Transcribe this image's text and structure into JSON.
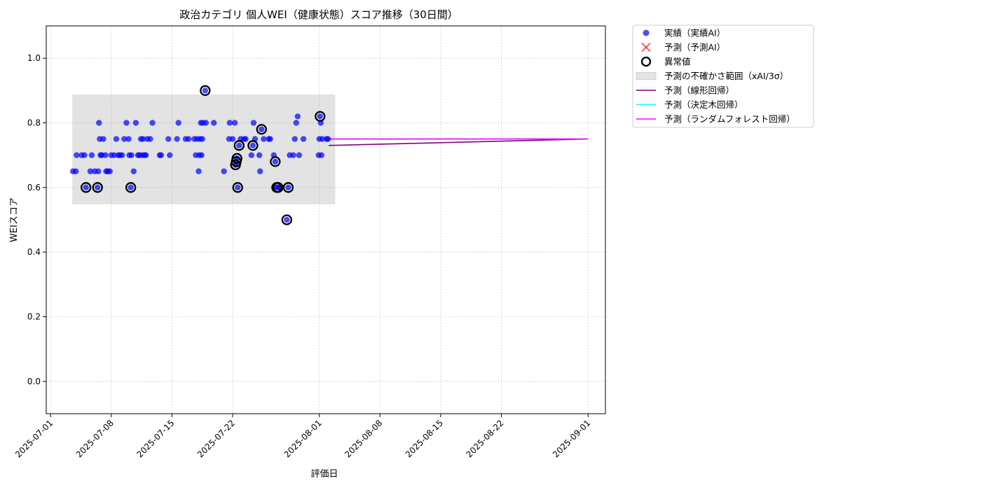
{
  "chart_data": {
    "type": "scatter",
    "title": "政治カテゴリ 個人WEI（健康状態）スコア推移（30日間）",
    "xlabel": "評価日",
    "ylabel": "WEIスコア",
    "xlim": [
      "2025-06-30T12:00",
      "2025-09-03T00:00"
    ],
    "ylim": [
      -0.1,
      1.1
    ],
    "grid": true,
    "legend_position": "outside-top-right",
    "x_ticks": [
      "2025-07-01",
      "2025-07-08",
      "2025-07-15",
      "2025-07-22",
      "2025-08-01",
      "2025-08-08",
      "2025-08-15",
      "2025-08-22",
      "2025-09-01"
    ],
    "y_ticks": [
      "0.0",
      "0.2",
      "0.4",
      "0.6",
      "0.8",
      "1.0"
    ],
    "uncertainty_band": {
      "label": "予測の不確かさ範囲（xAI/3σ）",
      "x": [
        "2025-07-03T12:00",
        "2025-08-02T20:00"
      ],
      "y": [
        0.548,
        0.888
      ],
      "color": "#b0b0b0"
    },
    "series": [
      {
        "name": "実績（実績AI）",
        "kind": "scatter",
        "color": "#0000ff",
        "points": [
          [
            "2025-07-03T14:00",
            0.65
          ],
          [
            "2025-07-03T22:00",
            0.65
          ],
          [
            "2025-07-04T00:00",
            0.7
          ],
          [
            "2025-07-04T14:00",
            0.7
          ],
          [
            "2025-07-04T22:00",
            0.7
          ],
          [
            "2025-07-05T02:00",
            0.6
          ],
          [
            "2025-07-05T14:00",
            0.65
          ],
          [
            "2025-07-05T18:00",
            0.7
          ],
          [
            "2025-07-06T02:00",
            0.65
          ],
          [
            "2025-07-06T10:00",
            0.6
          ],
          [
            "2025-07-06T12:00",
            0.65
          ],
          [
            "2025-07-06T14:00",
            0.8
          ],
          [
            "2025-07-06T16:00",
            0.75
          ],
          [
            "2025-07-06T18:00",
            0.7
          ],
          [
            "2025-07-06T22:00",
            0.7
          ],
          [
            "2025-07-07T02:00",
            0.75
          ],
          [
            "2025-07-07T08:00",
            0.7
          ],
          [
            "2025-07-07T10:00",
            0.65
          ],
          [
            "2025-07-07T14:00",
            0.65
          ],
          [
            "2025-07-07T20:00",
            0.65
          ],
          [
            "2025-07-08T00:00",
            0.7
          ],
          [
            "2025-07-08T08:00",
            0.7
          ],
          [
            "2025-07-08T14:00",
            0.75
          ],
          [
            "2025-07-08T20:00",
            0.7
          ],
          [
            "2025-07-09T00:00",
            0.7
          ],
          [
            "2025-07-09T06:00",
            0.7
          ],
          [
            "2025-07-09T12:00",
            0.75
          ],
          [
            "2025-07-09T18:00",
            0.8
          ],
          [
            "2025-07-10T00:00",
            0.75
          ],
          [
            "2025-07-10T02:00",
            0.7
          ],
          [
            "2025-07-10T06:00",
            0.6
          ],
          [
            "2025-07-10T08:00",
            0.7
          ],
          [
            "2025-07-10T14:00",
            0.65
          ],
          [
            "2025-07-10T20:00",
            0.8
          ],
          [
            "2025-07-11T02:00",
            0.7
          ],
          [
            "2025-07-11T06:00",
            0.7
          ],
          [
            "2025-07-11T10:00",
            0.75
          ],
          [
            "2025-07-11T14:00",
            0.7
          ],
          [
            "2025-07-11T16:00",
            0.75
          ],
          [
            "2025-07-11T20:00",
            0.7
          ],
          [
            "2025-07-12T00:00",
            0.7
          ],
          [
            "2025-07-12T04:00",
            0.75
          ],
          [
            "2025-07-12T12:00",
            0.75
          ],
          [
            "2025-07-12T18:00",
            0.8
          ],
          [
            "2025-07-13T14:00",
            0.7
          ],
          [
            "2025-07-13T18:00",
            0.7
          ],
          [
            "2025-07-14T14:00",
            0.75
          ],
          [
            "2025-07-14T18:00",
            0.7
          ],
          [
            "2025-07-15T14:00",
            0.75
          ],
          [
            "2025-07-15T18:00",
            0.8
          ],
          [
            "2025-07-16T14:00",
            0.75
          ],
          [
            "2025-07-16T22:00",
            0.75
          ],
          [
            "2025-07-17T14:00",
            0.75
          ],
          [
            "2025-07-17T18:00",
            0.7
          ],
          [
            "2025-07-17T22:00",
            0.75
          ],
          [
            "2025-07-18T02:00",
            0.65
          ],
          [
            "2025-07-18T04:00",
            0.7
          ],
          [
            "2025-07-18T06:00",
            0.75
          ],
          [
            "2025-07-18T08:00",
            0.8
          ],
          [
            "2025-07-18T10:00",
            0.7
          ],
          [
            "2025-07-18T12:00",
            0.75
          ],
          [
            "2025-07-18T14:00",
            0.8
          ],
          [
            "2025-07-18T20:00",
            0.9
          ],
          [
            "2025-07-18T22:00",
            0.8
          ],
          [
            "2025-07-19T20:00",
            0.8
          ],
          [
            "2025-07-21T00:00",
            0.65
          ],
          [
            "2025-07-21T14:00",
            0.75
          ],
          [
            "2025-07-21T16:00",
            0.8
          ],
          [
            "2025-07-22T00:00",
            0.75
          ],
          [
            "2025-07-22T06:00",
            0.8
          ],
          [
            "2025-07-22T08:00",
            0.67
          ],
          [
            "2025-07-22T10:00",
            0.68
          ],
          [
            "2025-07-22T12:00",
            0.69
          ],
          [
            "2025-07-22T14:00",
            0.6
          ],
          [
            "2025-07-22T18:00",
            0.73
          ],
          [
            "2025-07-22T22:00",
            0.75
          ],
          [
            "2025-07-23T08:00",
            0.75
          ],
          [
            "2025-07-23T12:00",
            0.75
          ],
          [
            "2025-07-24T04:00",
            0.7
          ],
          [
            "2025-07-24T08:00",
            0.73
          ],
          [
            "2025-07-24T10:00",
            0.8
          ],
          [
            "2025-07-24T14:00",
            0.75
          ],
          [
            "2025-07-25T02:00",
            0.7
          ],
          [
            "2025-07-25T04:00",
            0.65
          ],
          [
            "2025-07-25T08:00",
            0.78
          ],
          [
            "2025-07-25T14:00",
            0.75
          ],
          [
            "2025-07-26T04:00",
            0.75
          ],
          [
            "2025-07-26T08:00",
            0.75
          ],
          [
            "2025-07-26T18:00",
            0.7
          ],
          [
            "2025-07-26T22:00",
            0.68
          ],
          [
            "2025-07-27T02:00",
            0.6
          ],
          [
            "2025-07-27T06:00",
            0.6
          ],
          [
            "2025-07-27T10:00",
            0.6
          ],
          [
            "2025-07-28T06:00",
            0.5
          ],
          [
            "2025-07-28T10:00",
            0.6
          ],
          [
            "2025-07-28T14:00",
            0.7
          ],
          [
            "2025-07-29T00:00",
            0.7
          ],
          [
            "2025-07-29T04:00",
            0.75
          ],
          [
            "2025-07-29T08:00",
            0.8
          ],
          [
            "2025-07-29T12:00",
            0.82
          ],
          [
            "2025-07-29T16:00",
            0.7
          ],
          [
            "2025-07-30T04:00",
            0.75
          ],
          [
            "2025-07-31T22:00",
            0.7
          ],
          [
            "2025-08-01T00:00",
            0.75
          ],
          [
            "2025-08-01T02:00",
            0.82
          ],
          [
            "2025-08-01T04:00",
            0.8
          ],
          [
            "2025-08-01T06:00",
            0.7
          ],
          [
            "2025-08-01T08:00",
            0.75
          ],
          [
            "2025-08-01T20:00",
            0.75
          ],
          [
            "2025-08-02T00:00",
            0.75
          ]
        ]
      },
      {
        "name": "予測（予測AI）",
        "kind": "x-marker",
        "color": "#ff0000",
        "points": []
      },
      {
        "name": "異常値",
        "kind": "ring",
        "color": "#000000",
        "points": [
          [
            "2025-07-05T02:00",
            0.6
          ],
          [
            "2025-07-06T10:00",
            0.6
          ],
          [
            "2025-07-10T06:00",
            0.6
          ],
          [
            "2025-07-18T20:00",
            0.9
          ],
          [
            "2025-07-22T08:00",
            0.67
          ],
          [
            "2025-07-22T10:00",
            0.68
          ],
          [
            "2025-07-22T12:00",
            0.69
          ],
          [
            "2025-07-22T14:00",
            0.6
          ],
          [
            "2025-07-22T18:00",
            0.73
          ],
          [
            "2025-07-24T08:00",
            0.73
          ],
          [
            "2025-07-25T08:00",
            0.78
          ],
          [
            "2025-07-26T22:00",
            0.68
          ],
          [
            "2025-07-27T02:00",
            0.6
          ],
          [
            "2025-07-27T06:00",
            0.6
          ],
          [
            "2025-07-28T06:00",
            0.5
          ],
          [
            "2025-07-28T10:00",
            0.6
          ],
          [
            "2025-08-01T02:00",
            0.82
          ]
        ]
      },
      {
        "name": "予測（線形回帰）",
        "kind": "line",
        "color": "#800080",
        "points": [
          [
            "2025-08-02T02:00",
            0.73
          ],
          [
            "2025-09-01T00:00",
            0.75
          ]
        ]
      },
      {
        "name": "予測（決定木回帰）",
        "kind": "line",
        "color": "#00ffff",
        "points": [
          [
            "2025-08-02T02:00",
            0.75
          ],
          [
            "2025-09-01T00:00",
            0.75
          ]
        ]
      },
      {
        "name": "予測（ランダムフォレスト回帰）",
        "kind": "line",
        "color": "#ff00ff",
        "points": [
          [
            "2025-08-02T02:00",
            0.75
          ],
          [
            "2025-09-01T00:00",
            0.75
          ]
        ]
      }
    ]
  }
}
